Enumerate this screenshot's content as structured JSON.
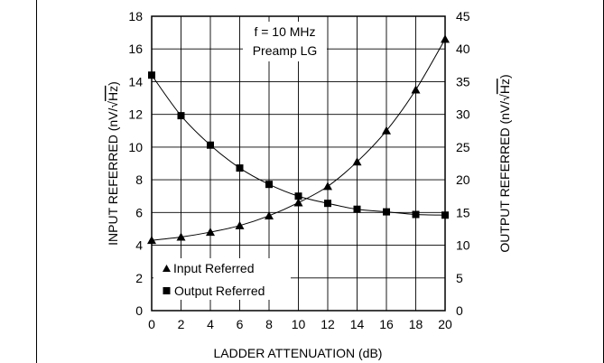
{
  "chart_data": {
    "type": "line",
    "xlabel": "LADDER ATTENUATION (dB)",
    "ylabel_left": "INPUT REFERRED (nV/√Hz)",
    "ylabel_right": "OUTPUT REFERRED (nV/√Hz)",
    "ylabel_prefix": "INPUT REFERRED (nV/",
    "ylabel_right_prefix": "OUTPUT REFERRED (nV/",
    "ylabel_sqrt_text": "Hz",
    "ylabel_suffix": ")",
    "xlim": [
      0,
      20
    ],
    "ylim_left": [
      0,
      18
    ],
    "ylim_right": [
      0,
      45
    ],
    "x_ticks": [
      "0",
      "2",
      "4",
      "6",
      "8",
      "10",
      "12",
      "14",
      "16",
      "18",
      "20"
    ],
    "y_left_ticks": [
      "0",
      "2",
      "4",
      "6",
      "8",
      "10",
      "12",
      "14",
      "16",
      "18"
    ],
    "y_right_ticks": [
      "0",
      "5",
      "10",
      "15",
      "20",
      "25",
      "30",
      "35",
      "40",
      "45"
    ],
    "grid": true,
    "annotation": [
      "f = 10 MHz",
      "Preamp LG"
    ],
    "legend_position": "bottom-left",
    "series": [
      {
        "name": "Input Referred",
        "axis": "left",
        "marker": "triangle",
        "x": [
          0,
          2,
          4,
          6,
          8,
          10,
          12,
          14,
          16,
          18,
          20
        ],
        "y": [
          4.3,
          4.5,
          4.8,
          5.2,
          5.8,
          6.6,
          7.6,
          9.1,
          11.0,
          13.5,
          16.6
        ]
      },
      {
        "name": "Output Referred",
        "axis": "right",
        "marker": "square",
        "x": [
          0,
          2,
          4,
          6,
          8,
          10,
          12,
          14,
          16,
          18,
          20
        ],
        "y": [
          36.0,
          29.8,
          25.3,
          21.8,
          19.3,
          17.5,
          16.4,
          15.5,
          15.1,
          14.7,
          14.6
        ]
      }
    ]
  }
}
